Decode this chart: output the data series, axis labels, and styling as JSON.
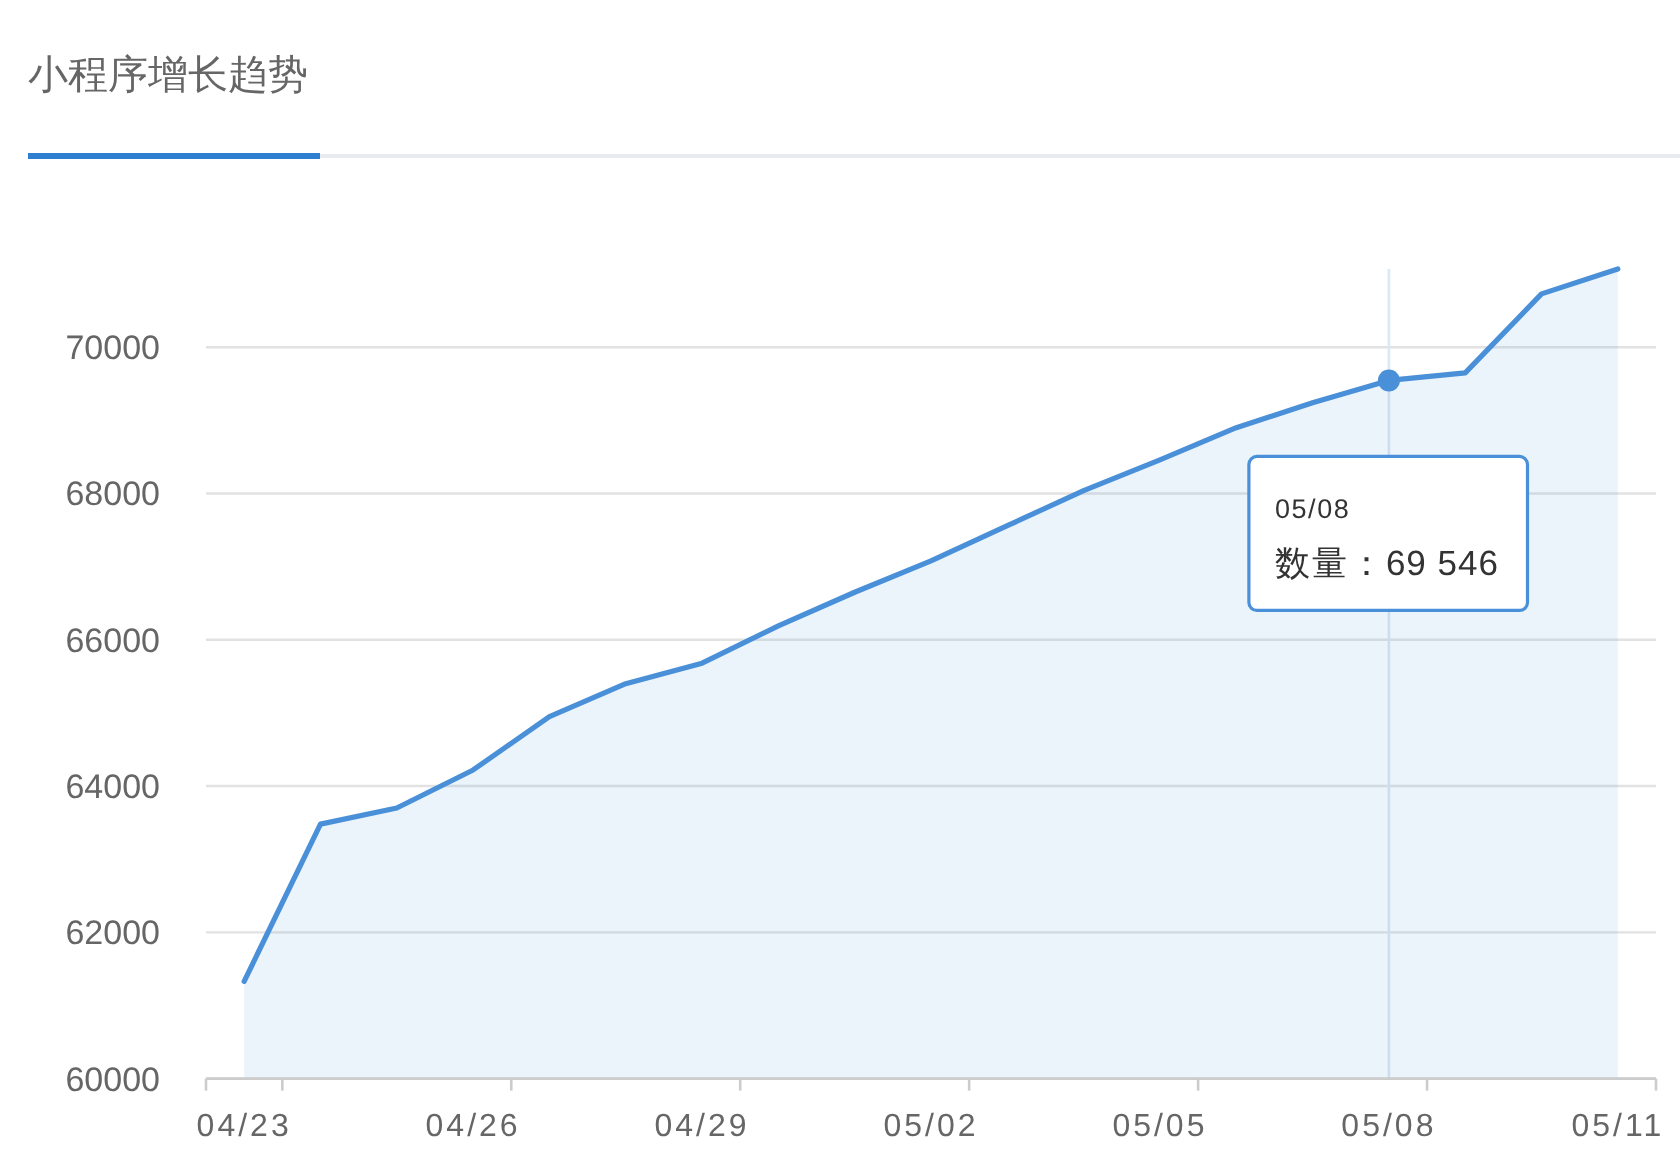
{
  "chart_data": {
    "type": "area",
    "title": "小程序增长趋势",
    "categories": [
      "04/23",
      null,
      null,
      "04/26",
      null,
      null,
      "04/29",
      null,
      null,
      "05/02",
      null,
      null,
      "05/05",
      null,
      null,
      "05/08",
      null,
      null,
      "05/11"
    ],
    "series": [
      {
        "color": "#4a90d9",
        "values": [
          61330,
          63480,
          63700,
          64220,
          64950,
          65400,
          65680,
          66190,
          66650,
          67080,
          67560,
          68040,
          68460,
          68900,
          69240,
          69546,
          69650,
          70730,
          71070
        ]
      }
    ],
    "ylim": [
      60000,
      71070
    ],
    "yticks": [
      60000,
      62000,
      64000,
      66000,
      68000,
      70000
    ],
    "grid": "y",
    "ref_lines": [
      {
        "axis": "x",
        "value": "05/08",
        "color": "#dce8f4"
      }
    ],
    "annotations": [
      "05/08",
      "数量：69 546"
    ]
  }
}
